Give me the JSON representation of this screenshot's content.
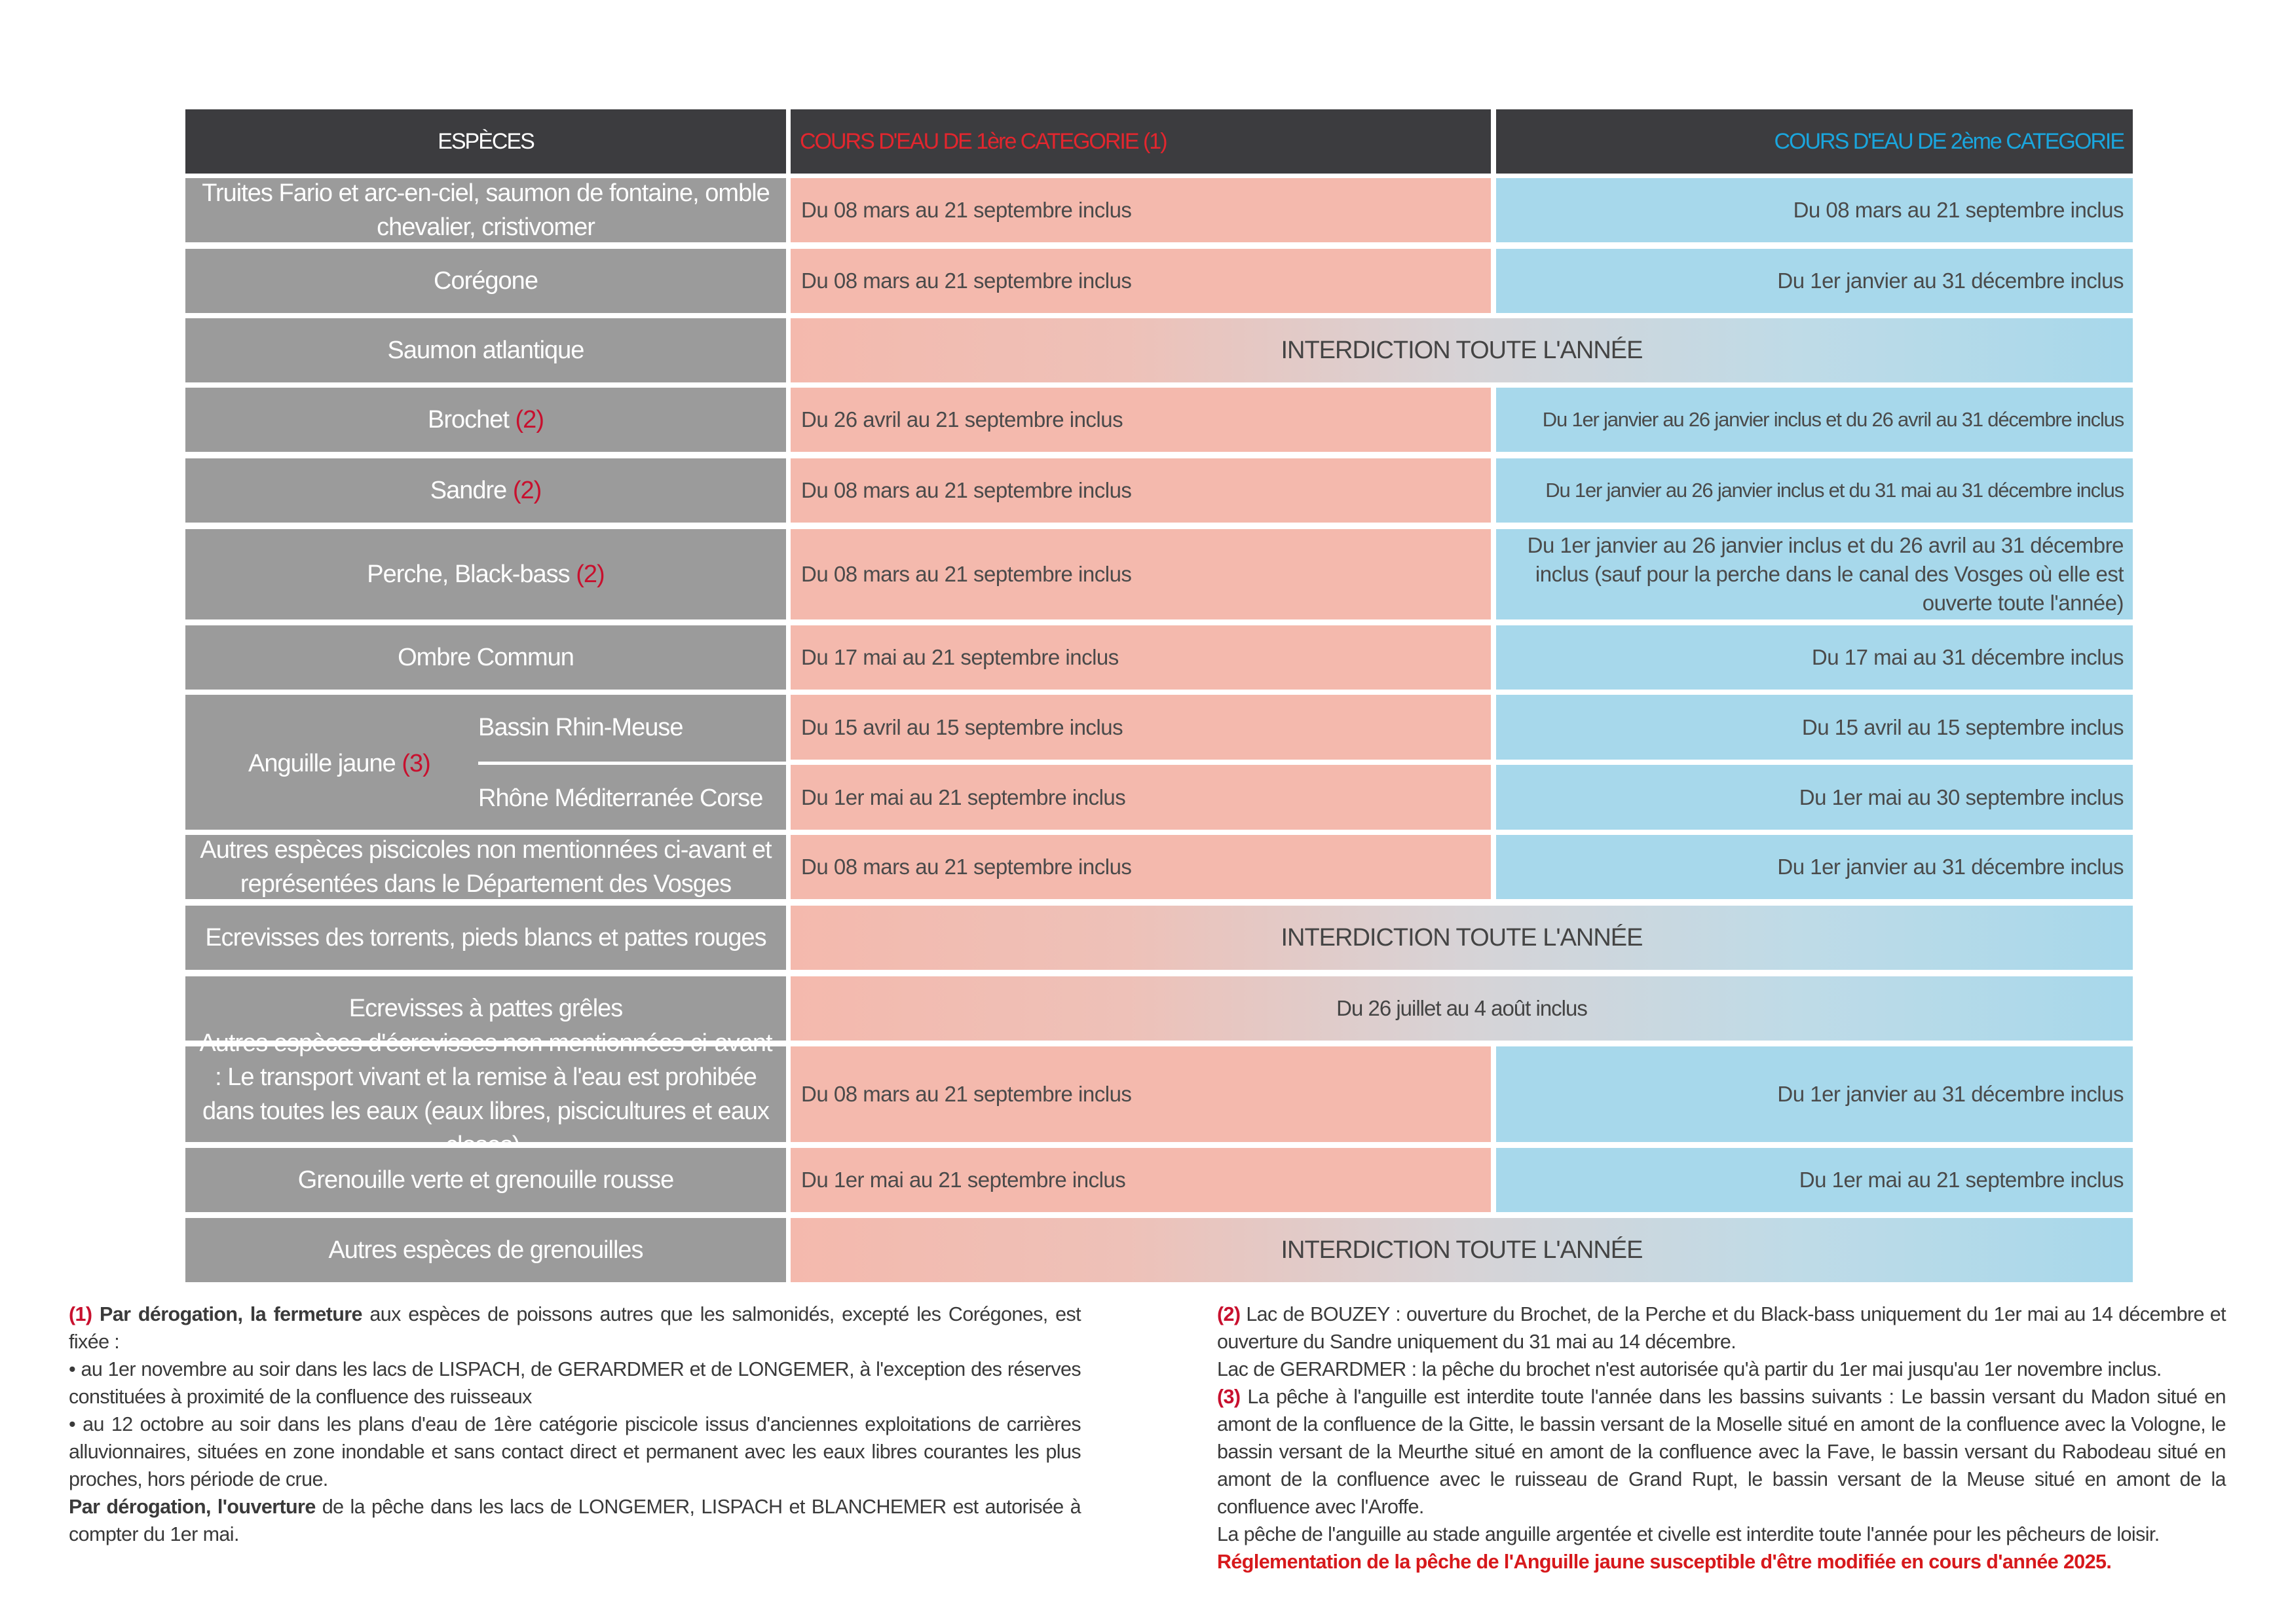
{
  "header": {
    "species": "ESPÈCES",
    "cat1": "COURS D'EAU DE 1ère CATEGORIE (1)",
    "cat2": "COURS D'EAU DE 2ème CATEGORIE"
  },
  "rows": {
    "truites": {
      "species": "Truites Fario et arc-en-ciel, saumon de fontaine, omble chevalier, cristivomer",
      "cat1": "Du 08 mars au 21 septembre inclus",
      "cat2": "Du 08 mars au 21 septembre inclus"
    },
    "coregone": {
      "species": "Corégone",
      "cat1": "Du 08 mars au 21 septembre inclus",
      "cat2": "Du 1er janvier au 31 décembre inclus"
    },
    "saumon": {
      "species": "Saumon atlantique",
      "both": "INTERDICTION TOUTE L'ANNÉE"
    },
    "brochet": {
      "species": "Brochet",
      "note": "(2)",
      "cat1": "Du 26 avril au 21 septembre inclus",
      "cat2": "Du 1er janvier au 26 janvier inclus et du 26 avril au 31 décembre inclus"
    },
    "sandre": {
      "species": "Sandre",
      "note": "(2)",
      "cat1": "Du 08 mars au 21 septembre inclus",
      "cat2": "Du 1er janvier au 26 janvier inclus et du 31 mai au 31 décembre inclus"
    },
    "perche": {
      "species": "Perche, Black-bass",
      "note": "(2)",
      "cat1": "Du 08 mars au 21 septembre inclus",
      "cat2": "Du 1er janvier au 26 janvier inclus et du 26 avril au 31 décembre inclus (sauf pour la perche dans le canal des Vosges où elle est ouverte toute l'année)"
    },
    "ombre": {
      "species": "Ombre Commun",
      "cat1": "Du 17 mai au 21 septembre inclus",
      "cat2": "Du 17 mai au 31 décembre inclus"
    },
    "anguille": {
      "species": "Anguille jaune",
      "note": "(3)",
      "sub1": {
        "basin": "Bassin Rhin-Meuse",
        "cat1": "Du 15 avril au 15 septembre inclus",
        "cat2": "Du 15 avril au 15 septembre inclus"
      },
      "sub2": {
        "basin": "Rhône Méditerranée Corse",
        "cat1": "Du 1er mai au 21 septembre inclus",
        "cat2": "Du 1er mai au 30 septembre inclus"
      }
    },
    "autres_pisc": {
      "species": "Autres espèces piscicoles non mentionnées ci-avant et représentées dans le Département des Vosges",
      "cat1": "Du 08 mars au 21 septembre inclus",
      "cat2": "Du 1er janvier au 31 décembre inclus"
    },
    "ecr_torrents": {
      "species": "Ecrevisses des torrents, pieds blancs et pattes rouges",
      "both": "INTERDICTION TOUTE L'ANNÉE"
    },
    "ecr_greles": {
      "species": "Ecrevisses à pattes grêles",
      "both": "Du 26 juillet au 4 août inclus"
    },
    "ecr_autres": {
      "species": "Autres espèces d'écrevisses non mentionnées ci-avant : Le transport vivant et la remise à l'eau est prohibée dans toutes les eaux (eaux libres, piscicultures et eaux closes).",
      "cat1": "Du 08 mars au 21 septembre inclus",
      "cat2": "Du 1er janvier au 31 décembre inclus"
    },
    "grenouille": {
      "species": "Grenouille verte et grenouille rousse",
      "cat1": "Du 1er mai au 21 septembre inclus",
      "cat2": "Du 1er mai au 21 septembre inclus"
    },
    "grenouilles_autres": {
      "species": "Autres espèces de grenouilles",
      "both": "INTERDICTION TOUTE L'ANNÉE"
    }
  },
  "notes": {
    "n1": {
      "mark": "(1)",
      "lead": "Par dérogation, la fermeture",
      "text1": " aux espèces de poissons autres que les salmonidés, excepté les Corégones, est fixée :",
      "bullet1": "• au 1er novembre au soir dans les lacs de LISPACH, de GERARDMER et de LONGEMER, à l'exception des réserves constituées à proximité de la confluence des ruisseaux",
      "bullet2": "• au 12 octobre au soir dans les plans d'eau de 1ère catégorie piscicole issus d'anciennes exploitations de carrières alluvionnaires, situées en zone inondable et sans contact direct et permanent avec les eaux libres courantes les plus proches, hors période de crue.",
      "lead2": "Par dérogation, l'ouverture",
      "text2": " de la pêche dans les lacs de LONGEMER, LISPACH et BLANCHEMER est autorisée à compter du 1er mai."
    },
    "n2": {
      "mark": "(2)",
      "text1": " Lac de BOUZEY : ouverture du Brochet, de la Perche et du Black-bass uniquement du 1er mai au 14 décembre et ouverture du Sandre uniquement du 31 mai au 14 décembre.",
      "text2": "Lac de GERARDMER : la pêche du brochet n'est autorisée qu'à partir du 1er mai jusqu'au 1er novembre inclus."
    },
    "n3": {
      "mark": "(3)",
      "text1": " La pêche à l'anguille est interdite toute l'année dans les bassins suivants : Le bassin versant du Madon situé en amont de la confluence de la Gitte, le bassin versant de la Moselle situé en amont de la confluence avec la Vologne, le bassin versant de la Meurthe situé en amont de la confluence avec la Fave, le bassin versant du Rabodeau situé en amont de la confluence avec le ruisseau de Grand Rupt, le bassin versant de la Meuse situé en amont de la confluence avec l'Aroffe.",
      "text2": "La pêche de l'anguille au stade anguille argentée et civelle est interdite toute l'année pour les pêcheurs de loisir.",
      "warning": "Réglementation de la pêche de l'Anguille jaune susceptible d'être modifiée en cours d'année 2025."
    }
  },
  "colors": {
    "header_bg": "#3c3c3f",
    "species_bg": "#9b9b9b",
    "cat1_bg": "#f4b9ad",
    "cat2_bg": "#a7d8eb",
    "cat1_header_text": "#e3262e",
    "cat2_header_text": "#1aa6de",
    "note_red": "#c8102e"
  }
}
